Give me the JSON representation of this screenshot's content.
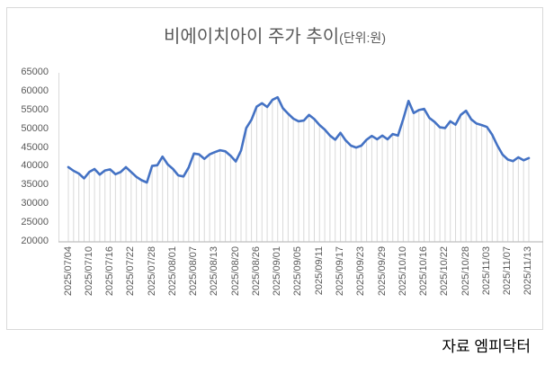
{
  "title": {
    "main": "비에이치아이 주가 추이",
    "unit": "(단위:원)"
  },
  "source": "자료 엠피닥터",
  "colors": {
    "line": "#4472c4",
    "grid": "#d9d9d9",
    "axis": "#bfbfbf",
    "text": "#595959",
    "frame_border": "#d9d9d9"
  },
  "chart_data": {
    "type": "line",
    "title": "비에이치아이 주가 추이(단위:원)",
    "ylabel": "",
    "xlabel": "",
    "ylim": [
      20000,
      65000
    ],
    "y_ticks": [
      65000,
      60000,
      55000,
      50000,
      45000,
      40000,
      35000,
      30000,
      25000,
      20000
    ],
    "grid": "drop-lines-vertical",
    "legend": "none",
    "x_tick_labels": [
      "2025/07/04",
      "2025/07/10",
      "2025/07/16",
      "2025/07/22",
      "2025/07/28",
      "2025/08/01",
      "2025/08/07",
      "2025/08/13",
      "2025/08/20",
      "2025/08/26",
      "2025/09/01",
      "2025/09/05",
      "2025/09/11",
      "2025/09/17",
      "2025/09/23",
      "2025/09/29",
      "2025/10/10",
      "2025/10/16",
      "2025/10/22",
      "2025/10/28",
      "2025/11/03",
      "2025/11/07",
      "2025/11/13"
    ],
    "x_tick_every": 4,
    "series_name": "주가(원)",
    "x": [
      "2025/07/04",
      "2025/07/07",
      "2025/07/08",
      "2025/07/09",
      "2025/07/10",
      "2025/07/11",
      "2025/07/14",
      "2025/07/15",
      "2025/07/16",
      "2025/07/17",
      "2025/07/18",
      "2025/07/21",
      "2025/07/22",
      "2025/07/23",
      "2025/07/24",
      "2025/07/25",
      "2025/07/28",
      "2025/07/29",
      "2025/07/30",
      "2025/07/31",
      "2025/08/01",
      "2025/08/04",
      "2025/08/05",
      "2025/08/06",
      "2025/08/07",
      "2025/08/08",
      "2025/08/11",
      "2025/08/12",
      "2025/08/13",
      "2025/08/14",
      "2025/08/18",
      "2025/08/19",
      "2025/08/20",
      "2025/08/21",
      "2025/08/22",
      "2025/08/25",
      "2025/08/26",
      "2025/08/27",
      "2025/08/28",
      "2025/08/29",
      "2025/09/01",
      "2025/09/02",
      "2025/09/03",
      "2025/09/04",
      "2025/09/05",
      "2025/09/08",
      "2025/09/09",
      "2025/09/10",
      "2025/09/11",
      "2025/09/12",
      "2025/09/15",
      "2025/09/16",
      "2025/09/17",
      "2025/09/18",
      "2025/09/19",
      "2025/09/22",
      "2025/09/23",
      "2025/09/24",
      "2025/09/25",
      "2025/09/26",
      "2025/09/29",
      "2025/09/30",
      "2025/10/01",
      "2025/10/02",
      "2025/10/10",
      "2025/10/13",
      "2025/10/14",
      "2025/10/15",
      "2025/10/16",
      "2025/10/17",
      "2025/10/20",
      "2025/10/21",
      "2025/10/22",
      "2025/10/23",
      "2025/10/24",
      "2025/10/27",
      "2025/10/28",
      "2025/10/29",
      "2025/10/30",
      "2025/10/31",
      "2025/11/03",
      "2025/11/04",
      "2025/11/05",
      "2025/11/06",
      "2025/11/07",
      "2025/11/10",
      "2025/11/11",
      "2025/11/12",
      "2025/11/13"
    ],
    "values": [
      39900,
      38900,
      38200,
      36900,
      38600,
      39400,
      37900,
      39000,
      39300,
      38000,
      38600,
      39900,
      38600,
      37300,
      36400,
      35800,
      40200,
      40400,
      42700,
      40600,
      39400,
      37700,
      37400,
      39800,
      43500,
      43300,
      42100,
      43300,
      43900,
      44400,
      44100,
      42900,
      41400,
      44300,
      50300,
      52500,
      56000,
      56900,
      55900,
      57800,
      58500,
      55600,
      54100,
      52800,
      52100,
      52300,
      53800,
      52700,
      51100,
      49900,
      48300,
      47200,
      49000,
      47000,
      45600,
      45100,
      45600,
      47200,
      48200,
      47300,
      48300,
      47300,
      48700,
      48300,
      52700,
      57500,
      54300,
      55100,
      55400,
      53000,
      51900,
      50500,
      50300,
      52100,
      51200,
      53800,
      54900,
      52600,
      51500,
      51100,
      50600,
      48500,
      45600,
      43200,
      41900,
      41500,
      42500,
      41700,
      42300
    ]
  }
}
